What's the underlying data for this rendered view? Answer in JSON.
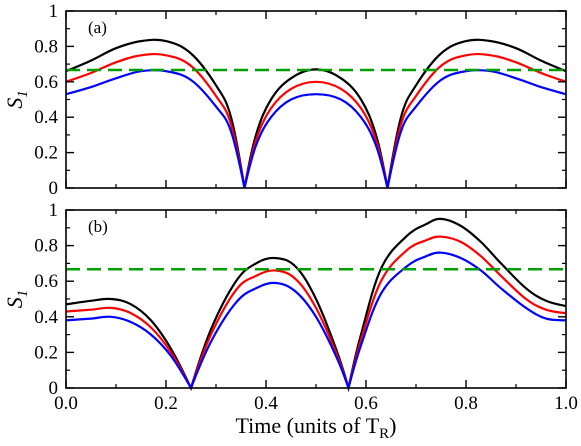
{
  "chart_data": [
    {
      "type": "line",
      "panel_label": "(a)",
      "ylabel": "S",
      "ylabel_sub": "1",
      "xlim": [
        0,
        1
      ],
      "ylim": [
        0,
        1
      ],
      "yticks": [
        "0",
        "0.2",
        "0.4",
        "0.6",
        "0.8",
        "1"
      ],
      "x": [
        0,
        0.05,
        0.1,
        0.15,
        0.2,
        0.25,
        0.3,
        0.33,
        0.357,
        0.38,
        0.41,
        0.45,
        0.5,
        0.55,
        0.59,
        0.62,
        0.643,
        0.67,
        0.7,
        0.75,
        0.8,
        0.85,
        0.9,
        0.95,
        1.0
      ],
      "series": [
        {
          "color": "#000000",
          "values": [
            0.66,
            0.72,
            0.79,
            0.83,
            0.83,
            0.76,
            0.58,
            0.4,
            0.0,
            0.3,
            0.5,
            0.62,
            0.67,
            0.62,
            0.5,
            0.3,
            0.0,
            0.4,
            0.58,
            0.76,
            0.83,
            0.83,
            0.79,
            0.72,
            0.66
          ]
        },
        {
          "color": "#ff0000",
          "values": [
            0.6,
            0.65,
            0.71,
            0.75,
            0.75,
            0.69,
            0.52,
            0.36,
            0.0,
            0.27,
            0.45,
            0.56,
            0.6,
            0.56,
            0.45,
            0.27,
            0.0,
            0.36,
            0.52,
            0.69,
            0.75,
            0.75,
            0.71,
            0.65,
            0.6
          ]
        },
        {
          "color": "#0000ff",
          "values": [
            0.53,
            0.57,
            0.62,
            0.66,
            0.66,
            0.61,
            0.46,
            0.32,
            0.0,
            0.24,
            0.4,
            0.5,
            0.53,
            0.5,
            0.4,
            0.24,
            0.0,
            0.32,
            0.46,
            0.61,
            0.66,
            0.66,
            0.62,
            0.57,
            0.53
          ]
        }
      ],
      "reference_line": {
        "y": 0.667,
        "color": "#00a000",
        "style": "dashed"
      }
    },
    {
      "type": "line",
      "panel_label": "(b)",
      "ylabel": "S",
      "ylabel_sub": "1",
      "xlabel": "Time (units of T",
      "xlabel_sub": "R",
      "xlabel_end": ")",
      "xlim": [
        0,
        1
      ],
      "ylim": [
        0,
        1
      ],
      "xticks": [
        "0.0",
        "0.2",
        "0.4",
        "0.6",
        "0.8",
        "1.0"
      ],
      "yticks": [
        "0",
        "0.2",
        "0.4",
        "0.6",
        "0.8",
        "1"
      ],
      "x": [
        0,
        0.05,
        0.09,
        0.13,
        0.17,
        0.21,
        0.25,
        0.29,
        0.34,
        0.38,
        0.42,
        0.46,
        0.5,
        0.54,
        0.565,
        0.59,
        0.63,
        0.68,
        0.72,
        0.75,
        0.79,
        0.83,
        0.87,
        0.92,
        0.96,
        1.0
      ],
      "series": [
        {
          "color": "#000000",
          "values": [
            0.47,
            0.49,
            0.5,
            0.47,
            0.38,
            0.22,
            0.0,
            0.33,
            0.6,
            0.7,
            0.73,
            0.68,
            0.5,
            0.22,
            0.0,
            0.3,
            0.67,
            0.85,
            0.92,
            0.95,
            0.91,
            0.82,
            0.7,
            0.56,
            0.49,
            0.46
          ]
        },
        {
          "color": "#ff0000",
          "values": [
            0.43,
            0.44,
            0.45,
            0.42,
            0.34,
            0.2,
            0.0,
            0.3,
            0.55,
            0.63,
            0.66,
            0.61,
            0.45,
            0.2,
            0.0,
            0.27,
            0.6,
            0.77,
            0.83,
            0.85,
            0.82,
            0.74,
            0.63,
            0.5,
            0.44,
            0.42
          ]
        },
        {
          "color": "#0000ff",
          "values": [
            0.38,
            0.39,
            0.4,
            0.37,
            0.3,
            0.18,
            0.0,
            0.26,
            0.48,
            0.56,
            0.59,
            0.54,
            0.4,
            0.18,
            0.0,
            0.24,
            0.53,
            0.68,
            0.74,
            0.76,
            0.73,
            0.66,
            0.56,
            0.45,
            0.39,
            0.38
          ]
        }
      ],
      "reference_line": {
        "y": 0.667,
        "color": "#00a000",
        "style": "dashed"
      }
    }
  ]
}
